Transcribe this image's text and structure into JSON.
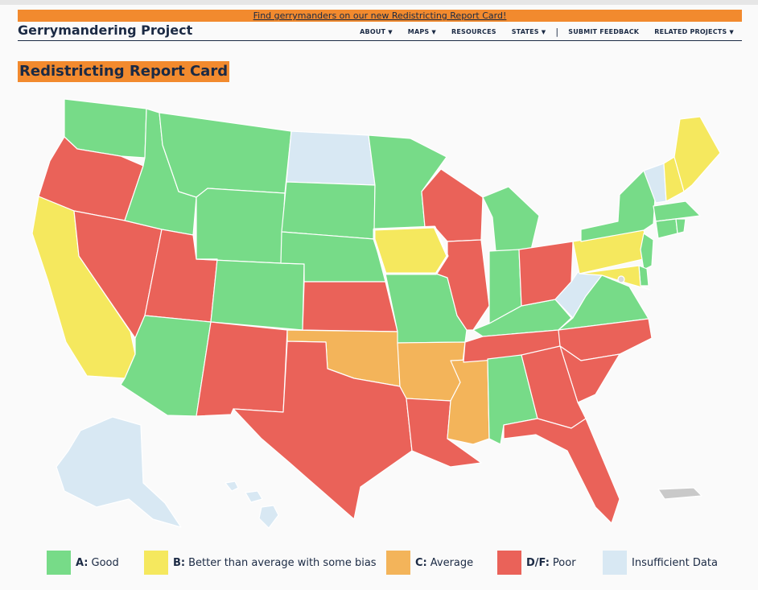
{
  "banner": {
    "text": "Find gerrymanders on our new Redistricting Report Card!"
  },
  "header": {
    "brand": "Gerrymandering Project",
    "nav": [
      {
        "label": "ABOUT",
        "caret": "▼"
      },
      {
        "label": "MAPS",
        "caret": "▼"
      },
      {
        "label": "RESOURCES",
        "caret": ""
      },
      {
        "label": "STATES",
        "caret": "▼"
      },
      {
        "label": "SUBMIT FEEDBACK",
        "caret": ""
      },
      {
        "label": "RELATED PROJECTS",
        "caret": "▼"
      }
    ],
    "separator": "|"
  },
  "page": {
    "title": "Redistricting Report Card"
  },
  "colors": {
    "A": "#77db88",
    "B": "#f5e85e",
    "C": "#f3b45a",
    "DF": "#ea6259",
    "ND": "#d8e8f3",
    "territory": "#c9c9c9",
    "accent": "#f28a2e",
    "navy": "#1b2a44"
  },
  "legend": [
    {
      "grade": "A:",
      "text": "Good",
      "color": "#77db88"
    },
    {
      "grade": "B:",
      "text": "Better than average with some bias",
      "color": "#f5e85e"
    },
    {
      "grade": "C:",
      "text": "Average",
      "color": "#f3b45a"
    },
    {
      "grade": "D/F:",
      "text": "Poor",
      "color": "#ea6259"
    },
    {
      "grade": "",
      "text": "Insufficient Data",
      "color": "#d8e8f3"
    }
  ],
  "grades": {
    "WA": "A",
    "OR": "DF",
    "CA": "B",
    "NV": "DF",
    "ID": "A",
    "MT": "A",
    "WY": "A",
    "UT": "DF",
    "AZ": "A",
    "CO": "A",
    "NM": "DF",
    "ND": "ND",
    "SD": "A",
    "NE": "A",
    "KS": "DF",
    "OK": "C",
    "TX": "DF",
    "MN": "A",
    "IA": "B",
    "MO": "A",
    "AR": "C",
    "LA": "DF",
    "WI": "DF",
    "IL": "DF",
    "MS": "C",
    "MI": "A",
    "IN": "A",
    "KY": "A",
    "TN": "DF",
    "AL": "A",
    "OH": "DF",
    "WV": "ND",
    "VA": "A",
    "NC": "DF",
    "SC": "DF",
    "GA": "DF",
    "FL": "DF",
    "PA": "B",
    "NY": "A",
    "VT": "ND",
    "NH": "B",
    "ME": "B",
    "MA": "A",
    "CT": "A",
    "RI": "A",
    "NJ": "A",
    "DE": "A",
    "MD": "B",
    "AK": "ND",
    "HI": "ND",
    "PR": "territory"
  }
}
